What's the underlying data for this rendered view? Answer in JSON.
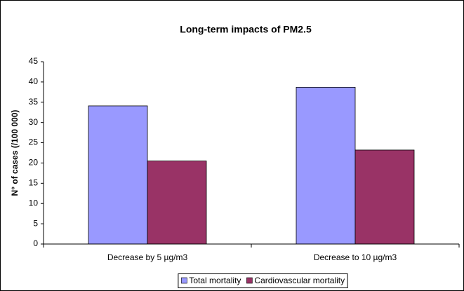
{
  "chart_data": {
    "type": "bar",
    "title": "Long-term impacts of PM2.5",
    "y_label": "N° of cases (/100 000)",
    "categories": [
      "Decrease by 5 µg/m3",
      "Decrease to 10 µg/m3"
    ],
    "series": [
      {
        "name": "Total mortality",
        "color": "#9999ff",
        "values": [
          34.1,
          38.7
        ]
      },
      {
        "name": "Cardiovascular mortality",
        "color": "#993366",
        "values": [
          20.5,
          23.2
        ]
      }
    ],
    "ylim": [
      0,
      45
    ],
    "yticks": [
      0,
      5,
      10,
      15,
      20,
      25,
      30,
      35,
      40,
      45
    ],
    "grid": false
  }
}
